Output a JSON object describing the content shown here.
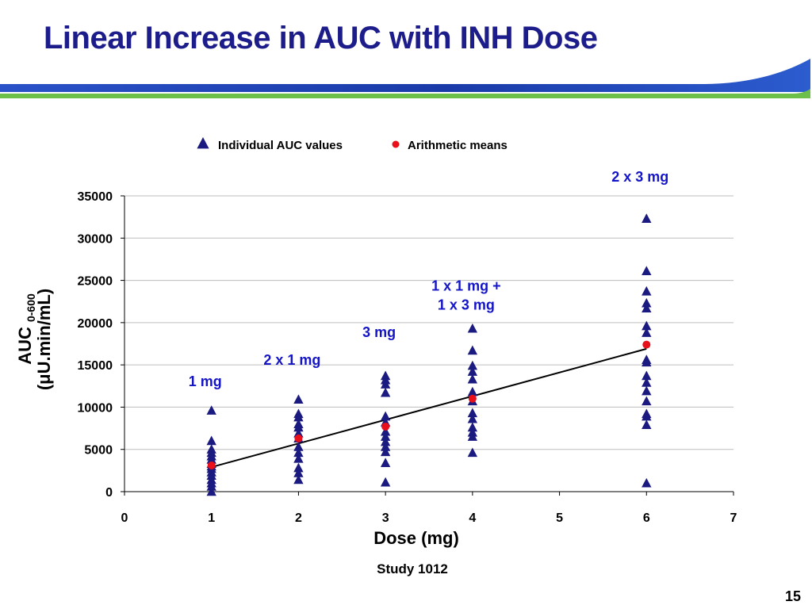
{
  "slide": {
    "title": "Linear Increase in AUC with INH Dose",
    "footer": "Study 1012",
    "page_number": "15"
  },
  "colors": {
    "title": "#1c1c8a",
    "triangle": "#1a1a80",
    "mean": "#e8101a",
    "annotation": "#1515c8",
    "swoosh_blue": "#1a3aa8",
    "swoosh_green": "#6cc04a"
  },
  "chart_data": {
    "type": "scatter",
    "xlabel": "Dose (mg)",
    "ylabel_main": "AUC",
    "ylabel_sub": "0-600",
    "ylabel_unit": "(μU.min/mL)",
    "xlim": [
      0,
      7
    ],
    "ylim": [
      0,
      35000
    ],
    "x_ticks": [
      0,
      1,
      2,
      3,
      4,
      5,
      6,
      7
    ],
    "y_ticks": [
      0,
      5000,
      10000,
      15000,
      20000,
      25000,
      30000,
      35000
    ],
    "grid": "horizontal",
    "legend_position": "top",
    "legend": [
      {
        "name": "Individual AUC values",
        "marker": "triangle"
      },
      {
        "name": "Arithmetic means",
        "marker": "circle"
      }
    ],
    "series": [
      {
        "name": "Individual AUC values",
        "marker": "triangle",
        "points": [
          [
            1,
            9600
          ],
          [
            1,
            6000
          ],
          [
            1,
            5000
          ],
          [
            1,
            4600
          ],
          [
            1,
            4200
          ],
          [
            1,
            3800
          ],
          [
            1,
            3300
          ],
          [
            1,
            3000
          ],
          [
            1,
            2700
          ],
          [
            1,
            2300
          ],
          [
            1,
            1900
          ],
          [
            1,
            1400
          ],
          [
            1,
            1000
          ],
          [
            1,
            600
          ],
          [
            1,
            0
          ],
          [
            2,
            10900
          ],
          [
            2,
            9200
          ],
          [
            2,
            8800
          ],
          [
            2,
            8000
          ],
          [
            2,
            7600
          ],
          [
            2,
            6900
          ],
          [
            2,
            6300
          ],
          [
            2,
            5300
          ],
          [
            2,
            4600
          ],
          [
            2,
            3900
          ],
          [
            2,
            2800
          ],
          [
            2,
            2200
          ],
          [
            2,
            1400
          ],
          [
            3,
            13700
          ],
          [
            3,
            13200
          ],
          [
            3,
            12700
          ],
          [
            3,
            11700
          ],
          [
            3,
            8900
          ],
          [
            3,
            8200
          ],
          [
            3,
            7100
          ],
          [
            3,
            6500
          ],
          [
            3,
            5900
          ],
          [
            3,
            5300
          ],
          [
            3,
            4700
          ],
          [
            3,
            3400
          ],
          [
            3,
            1100
          ],
          [
            4,
            19300
          ],
          [
            4,
            16700
          ],
          [
            4,
            14900
          ],
          [
            4,
            14200
          ],
          [
            4,
            13300
          ],
          [
            4,
            11800
          ],
          [
            4,
            10700
          ],
          [
            4,
            9300
          ],
          [
            4,
            8600
          ],
          [
            4,
            7600
          ],
          [
            4,
            7000
          ],
          [
            4,
            6500
          ],
          [
            4,
            4600
          ],
          [
            6,
            32300
          ],
          [
            6,
            26100
          ],
          [
            6,
            23700
          ],
          [
            6,
            22300
          ],
          [
            6,
            21700
          ],
          [
            6,
            19600
          ],
          [
            6,
            18800
          ],
          [
            6,
            15600
          ],
          [
            6,
            15300
          ],
          [
            6,
            13700
          ],
          [
            6,
            12900
          ],
          [
            6,
            11900
          ],
          [
            6,
            10700
          ],
          [
            6,
            9200
          ],
          [
            6,
            8900
          ],
          [
            6,
            7900
          ],
          [
            6,
            1000
          ]
        ]
      },
      {
        "name": "Arithmetic means",
        "marker": "circle",
        "points": [
          [
            1,
            3100
          ],
          [
            2,
            6300
          ],
          [
            3,
            7700
          ],
          [
            4,
            11000
          ],
          [
            6,
            17400
          ]
        ]
      }
    ],
    "trendline": {
      "x": [
        1,
        6
      ],
      "y": [
        2900,
        16900
      ]
    },
    "annotations": [
      {
        "lines": [
          "1 mg"
        ],
        "x": 1,
        "y": 12500
      },
      {
        "lines": [
          "2 x 1 mg"
        ],
        "x": 2,
        "y": 15000
      },
      {
        "lines": [
          "3 mg"
        ],
        "x": 3,
        "y": 18300
      },
      {
        "lines": [
          "1 x 1 mg +",
          "1 x 3 mg"
        ],
        "x": 4,
        "y": 23800
      },
      {
        "lines": [
          "2 x 3 mg"
        ],
        "x": 6,
        "y": 36700
      }
    ]
  }
}
